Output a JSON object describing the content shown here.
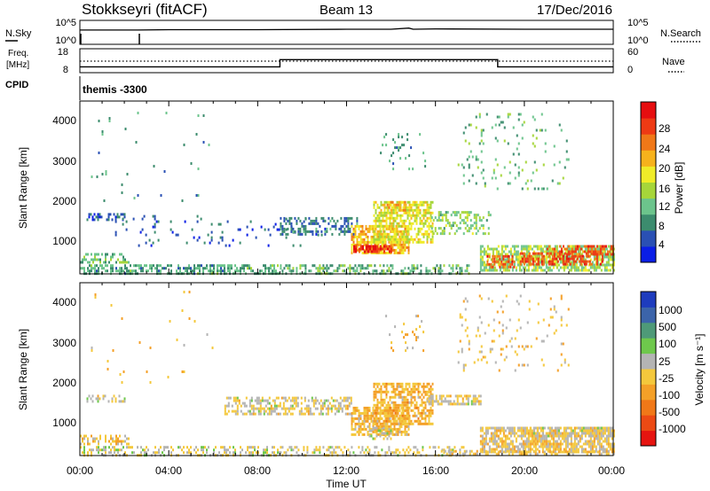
{
  "header": {
    "station": "Stokkseyri (fitACF)",
    "beam": "Beam 13",
    "date": "17/Dec/2016"
  },
  "nsky_panel": {
    "left_label": "N.Sky",
    "right_label": "N.Search",
    "left_ticks": [
      "10^5",
      "10^0"
    ],
    "right_ticks": [
      "10^5",
      "10^0"
    ]
  },
  "freq_panel": {
    "left_label_1": "Freq.",
    "left_label_2": "[MHz]",
    "left_ticks": [
      "18",
      "8"
    ],
    "right_ticks": [
      "60",
      "0"
    ],
    "right_label": "Nave",
    "cpid_label": "CPID",
    "cpid_value": "themis -3300"
  },
  "x_axis": {
    "label": "Time UT",
    "ticks": [
      "00:00",
      "04:00",
      "08:00",
      "12:00",
      "16:00",
      "20:00",
      "00:00"
    ]
  },
  "power_panel": {
    "ylabel": "Slant Range [km]",
    "yticks": [
      "4000",
      "3000",
      "2000",
      "1000"
    ],
    "colorbar_label": "Power [dB]",
    "colorbar_ticks": [
      "28",
      "24",
      "20",
      "16",
      "12",
      "8",
      "4"
    ],
    "colors": [
      "#0a1ee6",
      "#2a50b4",
      "#3c8c6e",
      "#6cc48c",
      "#a6d63a",
      "#f0ec28",
      "#f6b21c",
      "#f07818",
      "#ee3a14",
      "#e60e10"
    ]
  },
  "velocity_panel": {
    "ylabel": "Slant Range [km]",
    "yticks": [
      "4000",
      "3000",
      "2000",
      "1000"
    ],
    "colorbar_label": "Velocity [m s⁻¹]",
    "colorbar_ticks": [
      "1000",
      "500",
      "100",
      "25",
      "-25",
      "-100",
      "-500",
      "-1000"
    ],
    "colors": [
      "#1e3cbe",
      "#3c64aa",
      "#4e9a78",
      "#6ec84c",
      "#b4b4b4",
      "#f4c83c",
      "#f4a028",
      "#f07818",
      "#ec4a14",
      "#e61410"
    ]
  },
  "chart_data": [
    {
      "type": "line",
      "title": "N.Sky / N.Search",
      "x": [
        0,
        2,
        2.6,
        4,
        8,
        12,
        14,
        14.8,
        15,
        16,
        20,
        24
      ],
      "series": [
        {
          "name": "N.Sky",
          "values": [
            3.2,
            3.2,
            3.2,
            3.3,
            3.3,
            3.4,
            3.4,
            3.7,
            3.4,
            3.5,
            3.4,
            3.4
          ]
        }
      ],
      "ylim": [
        0,
        5
      ],
      "yscale": "log10"
    },
    {
      "type": "line",
      "title": "Freq. [MHz] / Nave",
      "x": [
        0,
        9,
        9,
        18.8,
        18.8,
        24
      ],
      "series": [
        {
          "name": "Freq.",
          "values": [
            10,
            10,
            13.5,
            13.5,
            10,
            10
          ]
        },
        {
          "name": "Nave",
          "values": [
            36,
            36,
            36,
            36,
            36,
            36
          ]
        }
      ],
      "ylim": [
        8,
        18
      ]
    },
    {
      "type": "heatmap",
      "title": "Power [dB]",
      "x_range": [
        0,
        24
      ],
      "y_range": [
        180,
        4500
      ],
      "value_range": [
        0,
        30
      ],
      "patches": [
        {
          "t0": 0.0,
          "t1": 9.0,
          "r0": 200,
          "r1": 420,
          "v": 9,
          "d": 0.55
        },
        {
          "t0": 0.0,
          "t1": 2.2,
          "r0": 450,
          "r1": 700,
          "v": 11,
          "d": 0.35
        },
        {
          "t0": 0.3,
          "t1": 2.0,
          "r0": 1550,
          "r1": 1700,
          "v": 5,
          "d": 0.45
        },
        {
          "t0": 1.5,
          "t1": 11.0,
          "r0": 900,
          "r1": 1650,
          "v": 5,
          "d": 0.06
        },
        {
          "t0": 9.0,
          "t1": 12.5,
          "r0": 1150,
          "r1": 1600,
          "v": 6,
          "d": 0.45
        },
        {
          "t0": 9.0,
          "t1": 17.5,
          "r0": 200,
          "r1": 420,
          "v": 10,
          "d": 0.45
        },
        {
          "t0": 12.2,
          "t1": 14.8,
          "r0": 700,
          "r1": 1400,
          "v": 19,
          "d": 0.72
        },
        {
          "t0": 12.3,
          "t1": 14.0,
          "r0": 720,
          "r1": 900,
          "v": 26,
          "d": 0.75
        },
        {
          "t0": 13.2,
          "t1": 15.9,
          "r0": 1000,
          "r1": 2000,
          "v": 16,
          "d": 0.62
        },
        {
          "t0": 13.8,
          "t1": 14.6,
          "r0": 1800,
          "r1": 2000,
          "v": 20,
          "d": 0.5
        },
        {
          "t0": 15.8,
          "t1": 18.5,
          "r0": 1200,
          "r1": 1750,
          "v": 12,
          "d": 0.35
        },
        {
          "t0": 18.0,
          "t1": 24.0,
          "r0": 250,
          "r1": 900,
          "v": 13,
          "d": 0.7
        },
        {
          "t0": 18.3,
          "t1": 19.5,
          "r0": 350,
          "r1": 650,
          "v": 24,
          "d": 0.6
        },
        {
          "t0": 19.8,
          "t1": 23.5,
          "r0": 420,
          "r1": 720,
          "v": 25,
          "d": 0.55
        },
        {
          "t0": 21.0,
          "t1": 24.0,
          "r0": 700,
          "r1": 900,
          "v": 24,
          "d": 0.55
        },
        {
          "t0": 13.5,
          "t1": 15.5,
          "r0": 2800,
          "r1": 3700,
          "v": 8,
          "d": 0.08
        },
        {
          "t0": 17.0,
          "t1": 22.0,
          "r0": 2300,
          "r1": 4200,
          "v": 10,
          "d": 0.06
        },
        {
          "t0": 0.5,
          "t1": 6.0,
          "r0": 2000,
          "r1": 4300,
          "v": 8,
          "d": 0.01
        }
      ]
    },
    {
      "type": "heatmap",
      "title": "Velocity [m s⁻¹]",
      "x_range": [
        0,
        24
      ],
      "y_range": [
        180,
        4500
      ],
      "value_range": [
        -1200,
        1200
      ],
      "patches": [
        {
          "t0": 0.0,
          "t1": 9.0,
          "r0": 200,
          "r1": 420,
          "v": 50,
          "d": 0.45
        },
        {
          "t0": 0.0,
          "t1": 2.2,
          "r0": 450,
          "r1": 700,
          "v": -150,
          "d": 0.4
        },
        {
          "t0": 0.3,
          "t1": 2.0,
          "r0": 1550,
          "r1": 1700,
          "v": 0,
          "d": 0.4
        },
        {
          "t0": 6.5,
          "t1": 12.2,
          "r0": 1250,
          "r1": 1650,
          "v": 0,
          "d": 0.5
        },
        {
          "t0": 9.0,
          "t1": 17.5,
          "r0": 200,
          "r1": 420,
          "v": 30,
          "d": 0.35
        },
        {
          "t0": 12.2,
          "t1": 14.8,
          "r0": 700,
          "r1": 1400,
          "v": -200,
          "d": 0.72
        },
        {
          "t0": 13.2,
          "t1": 15.9,
          "r0": 1000,
          "r1": 2000,
          "v": -250,
          "d": 0.62
        },
        {
          "t0": 13.0,
          "t1": 14.0,
          "r0": 600,
          "r1": 900,
          "v": 100,
          "d": 0.35
        },
        {
          "t0": 15.6,
          "t1": 18.0,
          "r0": 1500,
          "r1": 1700,
          "v": 0,
          "d": 0.7
        },
        {
          "t0": 18.0,
          "t1": 24.0,
          "r0": 250,
          "r1": 900,
          "v": -80,
          "d": 0.7
        },
        {
          "t0": 20.0,
          "t1": 24.0,
          "r0": 650,
          "r1": 900,
          "v": 0,
          "d": 0.6
        },
        {
          "t0": 16.0,
          "t1": 24.0,
          "r0": 200,
          "r1": 320,
          "v": -60,
          "d": 0.4
        },
        {
          "t0": 13.5,
          "t1": 15.5,
          "r0": 2800,
          "r1": 3700,
          "v": -150,
          "d": 0.07
        },
        {
          "t0": 17.0,
          "t1": 22.0,
          "r0": 2300,
          "r1": 4200,
          "v": -100,
          "d": 0.06
        },
        {
          "t0": 0.5,
          "t1": 6.0,
          "r0": 2000,
          "r1": 4300,
          "v": -200,
          "d": 0.01
        }
      ]
    }
  ]
}
